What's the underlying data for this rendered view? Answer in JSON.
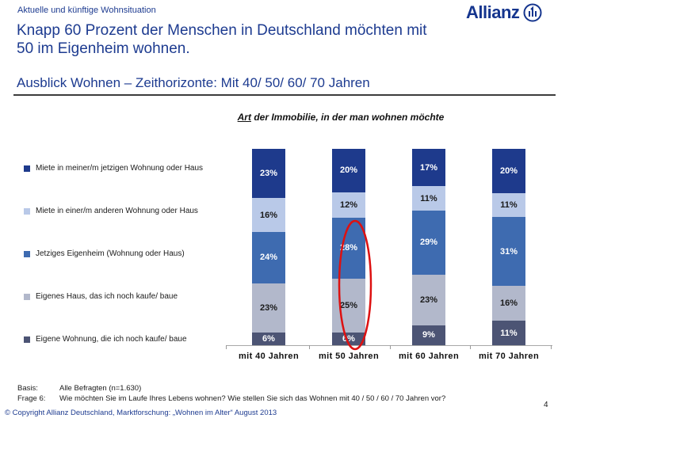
{
  "header": {
    "breadcrumb": "Aktuelle und künftige Wohnsituation",
    "logo_text": "Allianz"
  },
  "title": {
    "line1": "Knapp 60 Prozent der Menschen in Deutschland möchten mit",
    "line2": "50 im Eigenheim wohnen."
  },
  "section_heading": "Ausblick Wohnen – Zeithorizonte: Mit 40/ 50/ 60/ 70 Jahren",
  "chart_data": {
    "type": "bar",
    "stacked": true,
    "normalized_column_height": true,
    "title": "Art der Immobilie, in der man wohnen möchte",
    "title_underlined": "Art",
    "title_rest": " der Immobilie, in der man wohnen möchte",
    "categories": [
      "mit 40 Jahren",
      "mit 50 Jahren",
      "mit 60 Jahren",
      "mit 70 Jahren"
    ],
    "series": [
      {
        "name": "Miete in meiner/m jetzigen Wohnung oder Haus",
        "color": "#1e3a8c",
        "label_color": "#ffffff",
        "values": [
          23,
          20,
          17,
          20
        ]
      },
      {
        "name": "Miete in einer/m anderen Wohnung oder Haus",
        "color": "#b9c9e8",
        "label_color": "#1a1a1a",
        "values": [
          16,
          12,
          11,
          11
        ]
      },
      {
        "name": "Jetziges Eigenheim (Wohnung oder Haus)",
        "color": "#3e6bb0",
        "label_color": "#ffffff",
        "values": [
          24,
          28,
          29,
          31
        ]
      },
      {
        "name": "Eigenes Haus, das ich noch kaufe/ baue",
        "color": "#b2b8cb",
        "label_color": "#1a1a1a",
        "values": [
          23,
          25,
          23,
          16
        ]
      },
      {
        "name": "Eigene Wohnung, die ich noch kaufe/ baue",
        "color": "#4c5474",
        "label_color": "#ffffff",
        "values": [
          6,
          6,
          9,
          11
        ]
      }
    ],
    "value_suffix": "%",
    "legend_position": "left",
    "grid": false,
    "annotation": {
      "shape": "ellipse",
      "color": "#dd1111",
      "target_category": "mit 50 Jahren",
      "highlighted_values": [
        "28%",
        "25%",
        "6%"
      ]
    }
  },
  "footer": {
    "basis_label": "Basis:",
    "basis_value": "Alle Befragten (n=1.630)",
    "frage_label": "Frage 6:",
    "frage_value": "Wie möchten Sie im Laufe Ihres Lebens wohnen? Wie stellen Sie sich das Wohnen mit 40 / 50 / 60 / 70 Jahren vor?",
    "page_number": "4",
    "copyright": "© Copyright Allianz Deutschland, Marktforschung: „Wohnen im Alter“ August 2013"
  },
  "colors": {
    "brand_blue": "#1d3b90",
    "heading_rule": "#3c3c3c",
    "axis": "#a8a8a8"
  }
}
